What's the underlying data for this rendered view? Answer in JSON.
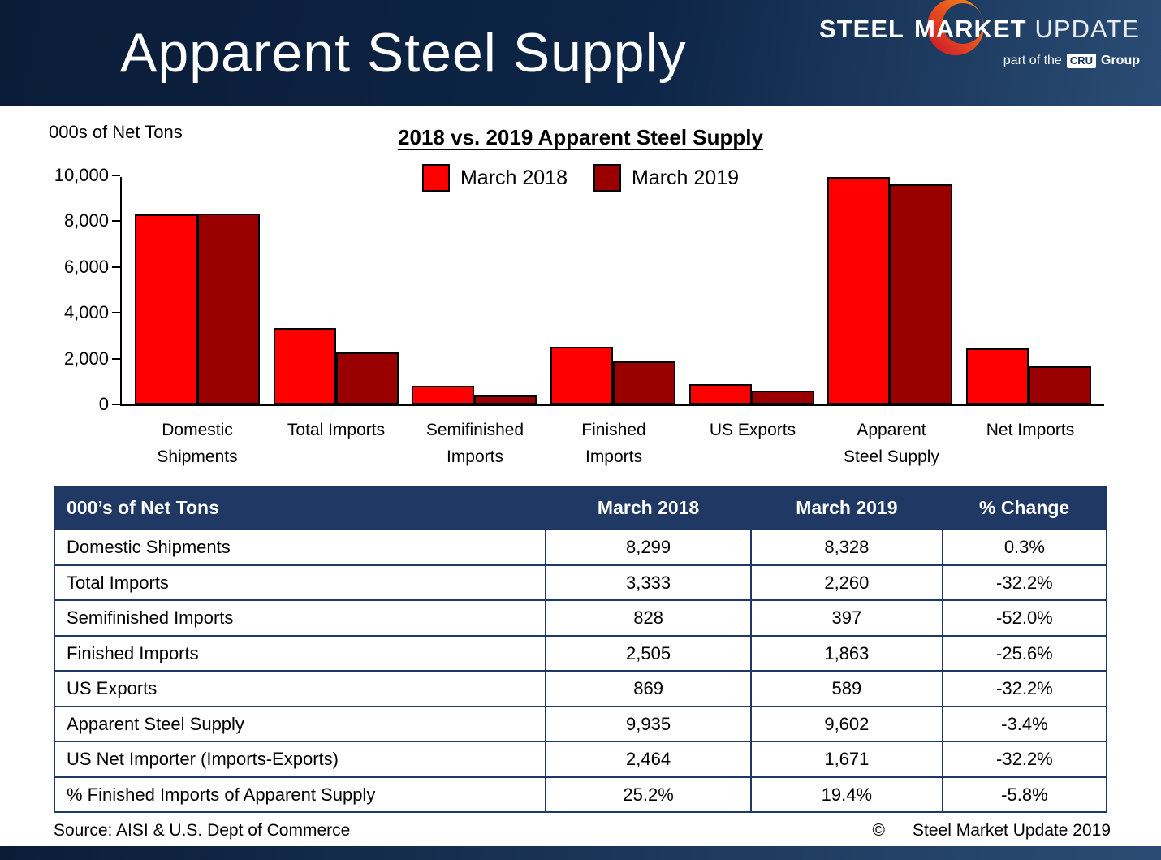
{
  "header": {
    "title": "Apparent Steel Supply",
    "logo": {
      "steel": "STEEL",
      "market": "MARKET",
      "update": "UPDATE",
      "part_of": "part of the",
      "cru": "CRU",
      "group": "Group"
    }
  },
  "chart": {
    "units_label": "000s of Net Tons"
  },
  "chart_data": {
    "type": "bar",
    "title": "2018 vs. 2019 Apparent Steel Supply",
    "categories": [
      "Domestic Shipments",
      "Total Imports",
      "Semifinished Imports",
      "Finished Imports",
      "US Exports",
      "Apparent Steel Supply",
      "Net Imports"
    ],
    "categories_lines": [
      [
        "Domestic",
        "Shipments"
      ],
      [
        "Total Imports"
      ],
      [
        "Semifinished",
        "Imports"
      ],
      [
        "Finished",
        "Imports"
      ],
      [
        "US Exports"
      ],
      [
        "Apparent",
        "Steel Supply"
      ],
      [
        "Net Imports"
      ]
    ],
    "series": [
      {
        "name": "March 2018",
        "color": "#FF0000",
        "values": [
          8299,
          3333,
          828,
          2505,
          869,
          9935,
          2464
        ]
      },
      {
        "name": "March 2019",
        "color": "#9B0000",
        "values": [
          8328,
          2260,
          397,
          1863,
          589,
          9602,
          1671
        ]
      }
    ],
    "xlabel": "",
    "ylabel": "000s of Net Tons",
    "ylim": [
      0,
      10000
    ],
    "ytick_step": 2000,
    "grid": false,
    "legend_position": "top-center"
  },
  "table": {
    "header": [
      "000’s of Net Tons",
      "March 2018",
      "March 2019",
      "% Change"
    ],
    "rows": [
      [
        "Domestic Shipments",
        "8,299",
        "8,328",
        "0.3%"
      ],
      [
        "Total Imports",
        "3,333",
        "2,260",
        "-32.2%"
      ],
      [
        "Semifinished Imports",
        "828",
        "397",
        "-52.0%"
      ],
      [
        "Finished Imports",
        "2,505",
        "1,863",
        "-25.6%"
      ],
      [
        "US Exports",
        "869",
        "589",
        "-32.2%"
      ],
      [
        "Apparent Steel Supply",
        "9,935",
        "9,602",
        "-3.4%"
      ],
      [
        "US Net Importer (Imports-Exports)",
        "2,464",
        "1,671",
        "-32.2%"
      ],
      [
        "% Finished Imports of Apparent Supply",
        "25.2%",
        "19.4%",
        "-5.8%"
      ]
    ]
  },
  "footer": {
    "source": "Source:  AISI & U.S. Dept of Commerce",
    "copyright": "©",
    "credit": "Steel Market Update 2019"
  },
  "colors": {
    "header_navy": "#0D2546",
    "table_header_navy": "#1F3864",
    "march_2018_red": "#FF0000",
    "march_2019_dark_red": "#9B0000"
  }
}
